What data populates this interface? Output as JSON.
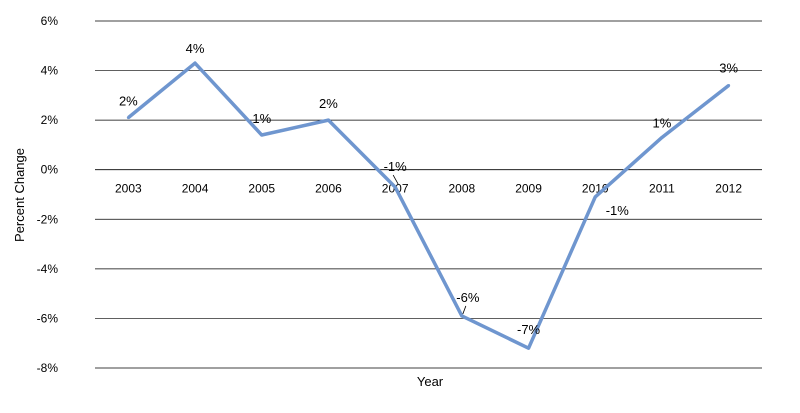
{
  "chart_data": {
    "type": "line",
    "title": "",
    "xlabel": "Year",
    "ylabel": "Percent Change",
    "categories": [
      "2003",
      "2004",
      "2005",
      "2006",
      "2007",
      "2008",
      "2009",
      "2010",
      "2011",
      "2012"
    ],
    "series": [
      {
        "values": [
          2.1,
          4.3,
          1.4,
          2.0,
          -0.7,
          -5.9,
          -7.2,
          -1.1,
          1.3,
          3.4
        ],
        "data_labels": [
          "2%",
          "4%",
          "1%",
          "2%",
          "-1%",
          "-6%",
          "-7%",
          "-1%",
          "1%",
          "3%"
        ],
        "color": "#6f96cf"
      }
    ],
    "ylim": [
      -8,
      6
    ],
    "yticks": [
      6,
      4,
      2,
      0,
      -2,
      -4,
      -6,
      -8
    ],
    "ytick_labels": [
      "6%",
      "4%",
      "2%",
      "0%",
      "-2%",
      "-4%",
      "-6%",
      "-8%"
    ],
    "grid": true,
    "legend": "none"
  }
}
